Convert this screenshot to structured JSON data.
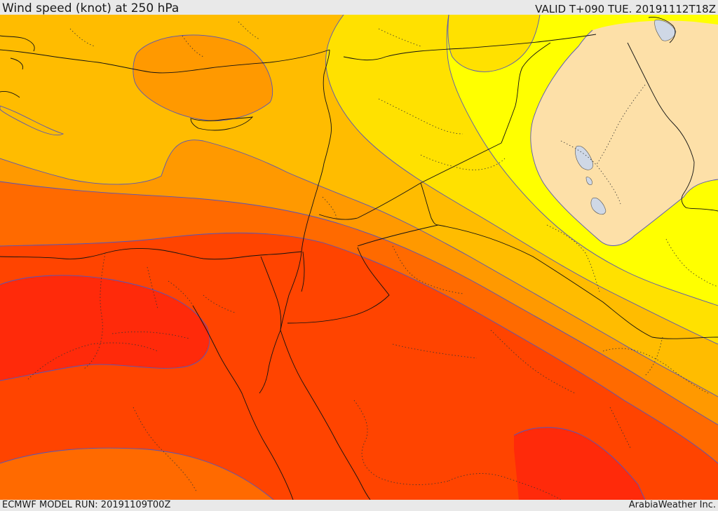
{
  "header": {
    "title": "Wind speed (knot) at 250 hPa",
    "valid": "VALID T+090 TUE. 20191112T18Z"
  },
  "footer": {
    "model_run": "ECMWF MODEL RUN: 20191109T00Z",
    "credit": "ArabiaWeather Inc."
  },
  "map": {
    "variable": "wind speed",
    "unit": "knot",
    "level_hpa": 250,
    "bands": [
      {
        "name": "band-1",
        "color": "#fde0a8"
      },
      {
        "name": "band-2",
        "color": "#ffff00"
      },
      {
        "name": "band-3",
        "color": "#ffe100"
      },
      {
        "name": "band-4",
        "color": "#ffbc00"
      },
      {
        "name": "band-5",
        "color": "#ff9900"
      },
      {
        "name": "band-6",
        "color": "#ff6a00"
      },
      {
        "name": "band-7",
        "color": "#ff4400"
      },
      {
        "name": "band-8",
        "color": "#ff2a0a"
      }
    ],
    "contour_color": "#5555bb",
    "water_color": "#cfd8e6"
  }
}
